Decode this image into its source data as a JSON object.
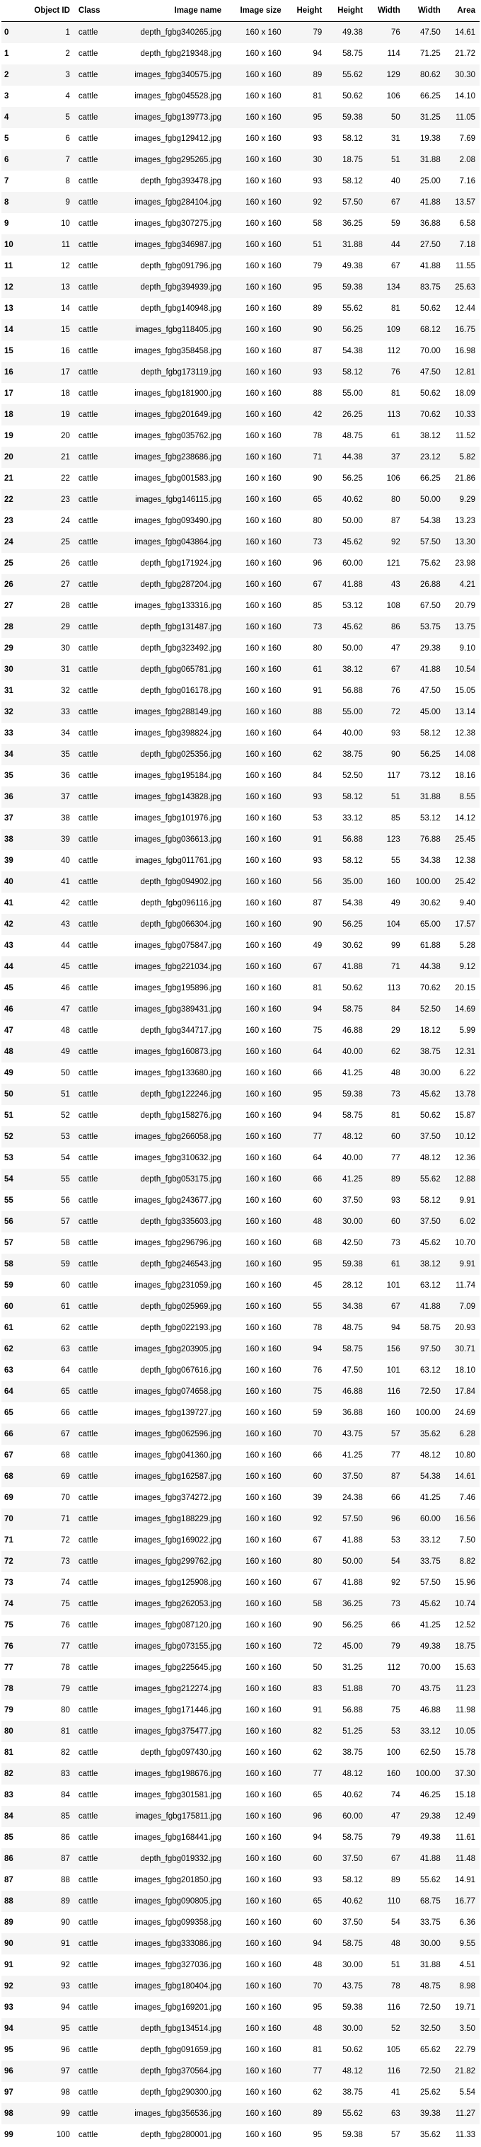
{
  "table": {
    "headers": [
      "",
      "Object ID",
      "Class",
      "Image name",
      "Image size",
      "Height",
      "Height",
      "Width",
      "Width",
      "Area"
    ],
    "rows": [
      [
        "0",
        "1",
        "cattle",
        "depth_fgbg340265.jpg",
        "160 x 160",
        "79",
        "49.38",
        "76",
        "47.50",
        "14.61"
      ],
      [
        "1",
        "2",
        "cattle",
        "depth_fgbg219348.jpg",
        "160 x 160",
        "94",
        "58.75",
        "114",
        "71.25",
        "21.72"
      ],
      [
        "2",
        "3",
        "cattle",
        "images_fgbg340575.jpg",
        "160 x 160",
        "89",
        "55.62",
        "129",
        "80.62",
        "30.30"
      ],
      [
        "3",
        "4",
        "cattle",
        "images_fgbg045528.jpg",
        "160 x 160",
        "81",
        "50.62",
        "106",
        "66.25",
        "14.10"
      ],
      [
        "4",
        "5",
        "cattle",
        "images_fgbg139773.jpg",
        "160 x 160",
        "95",
        "59.38",
        "50",
        "31.25",
        "11.05"
      ],
      [
        "5",
        "6",
        "cattle",
        "images_fgbg129412.jpg",
        "160 x 160",
        "93",
        "58.12",
        "31",
        "19.38",
        "7.69"
      ],
      [
        "6",
        "7",
        "cattle",
        "images_fgbg295265.jpg",
        "160 x 160",
        "30",
        "18.75",
        "51",
        "31.88",
        "2.08"
      ],
      [
        "7",
        "8",
        "cattle",
        "depth_fgbg393478.jpg",
        "160 x 160",
        "93",
        "58.12",
        "40",
        "25.00",
        "7.16"
      ],
      [
        "8",
        "9",
        "cattle",
        "images_fgbg284104.jpg",
        "160 x 160",
        "92",
        "57.50",
        "67",
        "41.88",
        "13.57"
      ],
      [
        "9",
        "10",
        "cattle",
        "images_fgbg307275.jpg",
        "160 x 160",
        "58",
        "36.25",
        "59",
        "36.88",
        "6.58"
      ],
      [
        "10",
        "11",
        "cattle",
        "images_fgbg346987.jpg",
        "160 x 160",
        "51",
        "31.88",
        "44",
        "27.50",
        "7.18"
      ],
      [
        "11",
        "12",
        "cattle",
        "depth_fgbg091796.jpg",
        "160 x 160",
        "79",
        "49.38",
        "67",
        "41.88",
        "11.55"
      ],
      [
        "12",
        "13",
        "cattle",
        "depth_fgbg394939.jpg",
        "160 x 160",
        "95",
        "59.38",
        "134",
        "83.75",
        "25.63"
      ],
      [
        "13",
        "14",
        "cattle",
        "depth_fgbg140948.jpg",
        "160 x 160",
        "89",
        "55.62",
        "81",
        "50.62",
        "12.44"
      ],
      [
        "14",
        "15",
        "cattle",
        "images_fgbg118405.jpg",
        "160 x 160",
        "90",
        "56.25",
        "109",
        "68.12",
        "16.75"
      ],
      [
        "15",
        "16",
        "cattle",
        "images_fgbg358458.jpg",
        "160 x 160",
        "87",
        "54.38",
        "112",
        "70.00",
        "16.98"
      ],
      [
        "16",
        "17",
        "cattle",
        "depth_fgbg173119.jpg",
        "160 x 160",
        "93",
        "58.12",
        "76",
        "47.50",
        "12.81"
      ],
      [
        "17",
        "18",
        "cattle",
        "images_fgbg181900.jpg",
        "160 x 160",
        "88",
        "55.00",
        "81",
        "50.62",
        "18.09"
      ],
      [
        "18",
        "19",
        "cattle",
        "images_fgbg201649.jpg",
        "160 x 160",
        "42",
        "26.25",
        "113",
        "70.62",
        "10.33"
      ],
      [
        "19",
        "20",
        "cattle",
        "images_fgbg035762.jpg",
        "160 x 160",
        "78",
        "48.75",
        "61",
        "38.12",
        "11.52"
      ],
      [
        "20",
        "21",
        "cattle",
        "images_fgbg238686.jpg",
        "160 x 160",
        "71",
        "44.38",
        "37",
        "23.12",
        "5.82"
      ],
      [
        "21",
        "22",
        "cattle",
        "images_fgbg001583.jpg",
        "160 x 160",
        "90",
        "56.25",
        "106",
        "66.25",
        "21.86"
      ],
      [
        "22",
        "23",
        "cattle",
        "images_fgbg146115.jpg",
        "160 x 160",
        "65",
        "40.62",
        "80",
        "50.00",
        "9.29"
      ],
      [
        "23",
        "24",
        "cattle",
        "images_fgbg093490.jpg",
        "160 x 160",
        "80",
        "50.00",
        "87",
        "54.38",
        "13.23"
      ],
      [
        "24",
        "25",
        "cattle",
        "images_fgbg043864.jpg",
        "160 x 160",
        "73",
        "45.62",
        "92",
        "57.50",
        "13.30"
      ],
      [
        "25",
        "26",
        "cattle",
        "depth_fgbg171924.jpg",
        "160 x 160",
        "96",
        "60.00",
        "121",
        "75.62",
        "23.98"
      ],
      [
        "26",
        "27",
        "cattle",
        "depth_fgbg287204.jpg",
        "160 x 160",
        "67",
        "41.88",
        "43",
        "26.88",
        "4.21"
      ],
      [
        "27",
        "28",
        "cattle",
        "images_fgbg133316.jpg",
        "160 x 160",
        "85",
        "53.12",
        "108",
        "67.50",
        "20.79"
      ],
      [
        "28",
        "29",
        "cattle",
        "depth_fgbg131487.jpg",
        "160 x 160",
        "73",
        "45.62",
        "86",
        "53.75",
        "13.75"
      ],
      [
        "29",
        "30",
        "cattle",
        "depth_fgbg323492.jpg",
        "160 x 160",
        "80",
        "50.00",
        "47",
        "29.38",
        "9.10"
      ],
      [
        "30",
        "31",
        "cattle",
        "depth_fgbg065781.jpg",
        "160 x 160",
        "61",
        "38.12",
        "67",
        "41.88",
        "10.54"
      ],
      [
        "31",
        "32",
        "cattle",
        "depth_fgbg016178.jpg",
        "160 x 160",
        "91",
        "56.88",
        "76",
        "47.50",
        "15.05"
      ],
      [
        "32",
        "33",
        "cattle",
        "images_fgbg288149.jpg",
        "160 x 160",
        "88",
        "55.00",
        "72",
        "45.00",
        "13.14"
      ],
      [
        "33",
        "34",
        "cattle",
        "images_fgbg398824.jpg",
        "160 x 160",
        "64",
        "40.00",
        "93",
        "58.12",
        "12.38"
      ],
      [
        "34",
        "35",
        "cattle",
        "depth_fgbg025356.jpg",
        "160 x 160",
        "62",
        "38.75",
        "90",
        "56.25",
        "14.08"
      ],
      [
        "35",
        "36",
        "cattle",
        "images_fgbg195184.jpg",
        "160 x 160",
        "84",
        "52.50",
        "117",
        "73.12",
        "18.16"
      ],
      [
        "36",
        "37",
        "cattle",
        "images_fgbg143828.jpg",
        "160 x 160",
        "93",
        "58.12",
        "51",
        "31.88",
        "8.55"
      ],
      [
        "37",
        "38",
        "cattle",
        "images_fgbg101976.jpg",
        "160 x 160",
        "53",
        "33.12",
        "85",
        "53.12",
        "14.12"
      ],
      [
        "38",
        "39",
        "cattle",
        "images_fgbg036613.jpg",
        "160 x 160",
        "91",
        "56.88",
        "123",
        "76.88",
        "25.45"
      ],
      [
        "39",
        "40",
        "cattle",
        "images_fgbg011761.jpg",
        "160 x 160",
        "93",
        "58.12",
        "55",
        "34.38",
        "12.38"
      ],
      [
        "40",
        "41",
        "cattle",
        "depth_fgbg094902.jpg",
        "160 x 160",
        "56",
        "35.00",
        "160",
        "100.00",
        "25.42"
      ],
      [
        "41",
        "42",
        "cattle",
        "depth_fgbg096116.jpg",
        "160 x 160",
        "87",
        "54.38",
        "49",
        "30.62",
        "9.40"
      ],
      [
        "42",
        "43",
        "cattle",
        "depth_fgbg066304.jpg",
        "160 x 160",
        "90",
        "56.25",
        "104",
        "65.00",
        "17.57"
      ],
      [
        "43",
        "44",
        "cattle",
        "images_fgbg075847.jpg",
        "160 x 160",
        "49",
        "30.62",
        "99",
        "61.88",
        "5.28"
      ],
      [
        "44",
        "45",
        "cattle",
        "images_fgbg221034.jpg",
        "160 x 160",
        "67",
        "41.88",
        "71",
        "44.38",
        "9.12"
      ],
      [
        "45",
        "46",
        "cattle",
        "images_fgbg195896.jpg",
        "160 x 160",
        "81",
        "50.62",
        "113",
        "70.62",
        "20.15"
      ],
      [
        "46",
        "47",
        "cattle",
        "images_fgbg389431.jpg",
        "160 x 160",
        "94",
        "58.75",
        "84",
        "52.50",
        "14.69"
      ],
      [
        "47",
        "48",
        "cattle",
        "depth_fgbg344717.jpg",
        "160 x 160",
        "75",
        "46.88",
        "29",
        "18.12",
        "5.99"
      ],
      [
        "48",
        "49",
        "cattle",
        "images_fgbg160873.jpg",
        "160 x 160",
        "64",
        "40.00",
        "62",
        "38.75",
        "12.31"
      ],
      [
        "49",
        "50",
        "cattle",
        "images_fgbg133680.jpg",
        "160 x 160",
        "66",
        "41.25",
        "48",
        "30.00",
        "6.22"
      ],
      [
        "50",
        "51",
        "cattle",
        "depth_fgbg122246.jpg",
        "160 x 160",
        "95",
        "59.38",
        "73",
        "45.62",
        "13.78"
      ],
      [
        "51",
        "52",
        "cattle",
        "depth_fgbg158276.jpg",
        "160 x 160",
        "94",
        "58.75",
        "81",
        "50.62",
        "15.87"
      ],
      [
        "52",
        "53",
        "cattle",
        "images_fgbg266058.jpg",
        "160 x 160",
        "77",
        "48.12",
        "60",
        "37.50",
        "10.12"
      ],
      [
        "53",
        "54",
        "cattle",
        "images_fgbg310632.jpg",
        "160 x 160",
        "64",
        "40.00",
        "77",
        "48.12",
        "12.36"
      ],
      [
        "54",
        "55",
        "cattle",
        "depth_fgbg053175.jpg",
        "160 x 160",
        "66",
        "41.25",
        "89",
        "55.62",
        "12.88"
      ],
      [
        "55",
        "56",
        "cattle",
        "images_fgbg243677.jpg",
        "160 x 160",
        "60",
        "37.50",
        "93",
        "58.12",
        "9.91"
      ],
      [
        "56",
        "57",
        "cattle",
        "depth_fgbg335603.jpg",
        "160 x 160",
        "48",
        "30.00",
        "60",
        "37.50",
        "6.02"
      ],
      [
        "57",
        "58",
        "cattle",
        "images_fgbg296796.jpg",
        "160 x 160",
        "68",
        "42.50",
        "73",
        "45.62",
        "10.70"
      ],
      [
        "58",
        "59",
        "cattle",
        "depth_fgbg246543.jpg",
        "160 x 160",
        "95",
        "59.38",
        "61",
        "38.12",
        "9.91"
      ],
      [
        "59",
        "60",
        "cattle",
        "images_fgbg231059.jpg",
        "160 x 160",
        "45",
        "28.12",
        "101",
        "63.12",
        "11.74"
      ],
      [
        "60",
        "61",
        "cattle",
        "depth_fgbg025969.jpg",
        "160 x 160",
        "55",
        "34.38",
        "67",
        "41.88",
        "7.09"
      ],
      [
        "61",
        "62",
        "cattle",
        "depth_fgbg022193.jpg",
        "160 x 160",
        "78",
        "48.75",
        "94",
        "58.75",
        "20.93"
      ],
      [
        "62",
        "63",
        "cattle",
        "images_fgbg203905.jpg",
        "160 x 160",
        "94",
        "58.75",
        "156",
        "97.50",
        "30.71"
      ],
      [
        "63",
        "64",
        "cattle",
        "depth_fgbg067616.jpg",
        "160 x 160",
        "76",
        "47.50",
        "101",
        "63.12",
        "18.10"
      ],
      [
        "64",
        "65",
        "cattle",
        "images_fgbg074658.jpg",
        "160 x 160",
        "75",
        "46.88",
        "116",
        "72.50",
        "17.84"
      ],
      [
        "65",
        "66",
        "cattle",
        "images_fgbg139727.jpg",
        "160 x 160",
        "59",
        "36.88",
        "160",
        "100.00",
        "24.69"
      ],
      [
        "66",
        "67",
        "cattle",
        "images_fgbg062596.jpg",
        "160 x 160",
        "70",
        "43.75",
        "57",
        "35.62",
        "6.28"
      ],
      [
        "67",
        "68",
        "cattle",
        "images_fgbg041360.jpg",
        "160 x 160",
        "66",
        "41.25",
        "77",
        "48.12",
        "10.80"
      ],
      [
        "68",
        "69",
        "cattle",
        "images_fgbg162587.jpg",
        "160 x 160",
        "60",
        "37.50",
        "87",
        "54.38",
        "14.61"
      ],
      [
        "69",
        "70",
        "cattle",
        "images_fgbg374272.jpg",
        "160 x 160",
        "39",
        "24.38",
        "66",
        "41.25",
        "7.46"
      ],
      [
        "70",
        "71",
        "cattle",
        "images_fgbg188229.jpg",
        "160 x 160",
        "92",
        "57.50",
        "96",
        "60.00",
        "16.56"
      ],
      [
        "71",
        "72",
        "cattle",
        "images_fgbg169022.jpg",
        "160 x 160",
        "67",
        "41.88",
        "53",
        "33.12",
        "7.50"
      ],
      [
        "72",
        "73",
        "cattle",
        "images_fgbg299762.jpg",
        "160 x 160",
        "80",
        "50.00",
        "54",
        "33.75",
        "8.82"
      ],
      [
        "73",
        "74",
        "cattle",
        "images_fgbg125908.jpg",
        "160 x 160",
        "67",
        "41.88",
        "92",
        "57.50",
        "15.96"
      ],
      [
        "74",
        "75",
        "cattle",
        "images_fgbg262053.jpg",
        "160 x 160",
        "58",
        "36.25",
        "73",
        "45.62",
        "10.74"
      ],
      [
        "75",
        "76",
        "cattle",
        "images_fgbg087120.jpg",
        "160 x 160",
        "90",
        "56.25",
        "66",
        "41.25",
        "12.52"
      ],
      [
        "76",
        "77",
        "cattle",
        "images_fgbg073155.jpg",
        "160 x 160",
        "72",
        "45.00",
        "79",
        "49.38",
        "18.75"
      ],
      [
        "77",
        "78",
        "cattle",
        "images_fgbg225645.jpg",
        "160 x 160",
        "50",
        "31.25",
        "112",
        "70.00",
        "15.63"
      ],
      [
        "78",
        "79",
        "cattle",
        "images_fgbg212274.jpg",
        "160 x 160",
        "83",
        "51.88",
        "70",
        "43.75",
        "11.23"
      ],
      [
        "79",
        "80",
        "cattle",
        "images_fgbg171446.jpg",
        "160 x 160",
        "91",
        "56.88",
        "75",
        "46.88",
        "11.98"
      ],
      [
        "80",
        "81",
        "cattle",
        "images_fgbg375477.jpg",
        "160 x 160",
        "82",
        "51.25",
        "53",
        "33.12",
        "10.05"
      ],
      [
        "81",
        "82",
        "cattle",
        "depth_fgbg097430.jpg",
        "160 x 160",
        "62",
        "38.75",
        "100",
        "62.50",
        "15.78"
      ],
      [
        "82",
        "83",
        "cattle",
        "images_fgbg198676.jpg",
        "160 x 160",
        "77",
        "48.12",
        "160",
        "100.00",
        "37.30"
      ],
      [
        "83",
        "84",
        "cattle",
        "images_fgbg301581.jpg",
        "160 x 160",
        "65",
        "40.62",
        "74",
        "46.25",
        "15.18"
      ],
      [
        "84",
        "85",
        "cattle",
        "images_fgbg175811.jpg",
        "160 x 160",
        "96",
        "60.00",
        "47",
        "29.38",
        "12.49"
      ],
      [
        "85",
        "86",
        "cattle",
        "images_fgbg168441.jpg",
        "160 x 160",
        "94",
        "58.75",
        "79",
        "49.38",
        "11.61"
      ],
      [
        "86",
        "87",
        "cattle",
        "depth_fgbg019332.jpg",
        "160 x 160",
        "60",
        "37.50",
        "67",
        "41.88",
        "11.48"
      ],
      [
        "87",
        "88",
        "cattle",
        "images_fgbg201850.jpg",
        "160 x 160",
        "93",
        "58.12",
        "89",
        "55.62",
        "14.91"
      ],
      [
        "88",
        "89",
        "cattle",
        "images_fgbg090805.jpg",
        "160 x 160",
        "65",
        "40.62",
        "110",
        "68.75",
        "16.77"
      ],
      [
        "89",
        "90",
        "cattle",
        "images_fgbg099358.jpg",
        "160 x 160",
        "60",
        "37.50",
        "54",
        "33.75",
        "6.36"
      ],
      [
        "90",
        "91",
        "cattle",
        "images_fgbg333086.jpg",
        "160 x 160",
        "94",
        "58.75",
        "48",
        "30.00",
        "9.55"
      ],
      [
        "91",
        "92",
        "cattle",
        "images_fgbg327036.jpg",
        "160 x 160",
        "48",
        "30.00",
        "51",
        "31.88",
        "4.51"
      ],
      [
        "92",
        "93",
        "cattle",
        "images_fgbg180404.jpg",
        "160 x 160",
        "70",
        "43.75",
        "78",
        "48.75",
        "8.98"
      ],
      [
        "93",
        "94",
        "cattle",
        "images_fgbg169201.jpg",
        "160 x 160",
        "95",
        "59.38",
        "116",
        "72.50",
        "19.71"
      ],
      [
        "94",
        "95",
        "cattle",
        "depth_fgbg134514.jpg",
        "160 x 160",
        "48",
        "30.00",
        "52",
        "32.50",
        "3.50"
      ],
      [
        "95",
        "96",
        "cattle",
        "depth_fgbg091659.jpg",
        "160 x 160",
        "81",
        "50.62",
        "105",
        "65.62",
        "22.79"
      ],
      [
        "96",
        "97",
        "cattle",
        "depth_fgbg370564.jpg",
        "160 x 160",
        "77",
        "48.12",
        "116",
        "72.50",
        "21.82"
      ],
      [
        "97",
        "98",
        "cattle",
        "depth_fgbg290300.jpg",
        "160 x 160",
        "62",
        "38.75",
        "41",
        "25.62",
        "5.54"
      ],
      [
        "98",
        "99",
        "cattle",
        "images_fgbg356536.jpg",
        "160 x 160",
        "89",
        "55.62",
        "63",
        "39.38",
        "11.27"
      ],
      [
        "99",
        "100",
        "cattle",
        "depth_fgbg280001.jpg",
        "160 x 160",
        "95",
        "59.38",
        "57",
        "35.62",
        "11.33"
      ]
    ]
  }
}
